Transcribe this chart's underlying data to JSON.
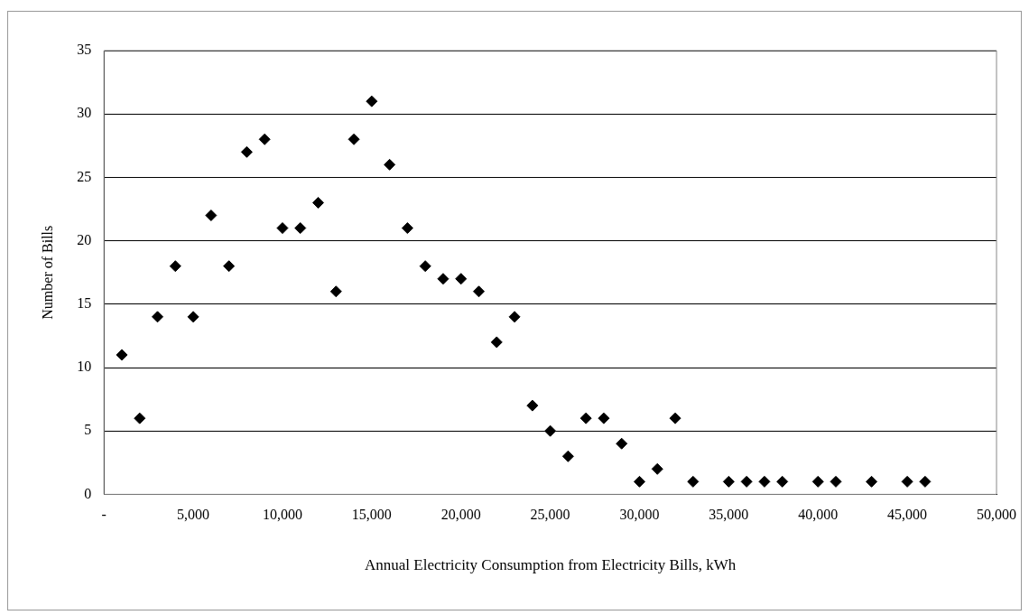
{
  "chart_data": {
    "type": "scatter",
    "xlabel": "Annual Electricity Consumption from Electricity Bills, kWh",
    "ylabel": "Number of Bills",
    "x": [
      1000,
      2000,
      3000,
      4000,
      5000,
      6000,
      7000,
      8000,
      9000,
      10000,
      11000,
      12000,
      13000,
      14000,
      15000,
      16000,
      17000,
      18000,
      19000,
      20000,
      21000,
      22000,
      23000,
      24000,
      25000,
      26000,
      27000,
      28000,
      29000,
      30000,
      31000,
      32000,
      33000,
      35000,
      36000,
      37000,
      38000,
      40000,
      41000,
      43000,
      45000,
      46000
    ],
    "series": [
      {
        "color": "#000000",
        "values": [
          11,
          6,
          14,
          18,
          14,
          22,
          18,
          27,
          28,
          21,
          21,
          23,
          16,
          28,
          31,
          26,
          21,
          18,
          17,
          17,
          16,
          12,
          14,
          7,
          5,
          3,
          6,
          6,
          4,
          1,
          2,
          6,
          1,
          1,
          1,
          1,
          1,
          1,
          1,
          1,
          1,
          1
        ]
      }
    ],
    "xlim": [
      0,
      50000
    ],
    "xticks": [
      {
        "value": 0,
        "label": "-"
      },
      {
        "value": 5000,
        "label": "5,000"
      },
      {
        "value": 10000,
        "label": "10,000"
      },
      {
        "value": 15000,
        "label": "15,000"
      },
      {
        "value": 20000,
        "label": "20,000"
      },
      {
        "value": 25000,
        "label": "25,000"
      },
      {
        "value": 30000,
        "label": "30,000"
      },
      {
        "value": 35000,
        "label": "35,000"
      },
      {
        "value": 40000,
        "label": "40,000"
      },
      {
        "value": 45000,
        "label": "45,000"
      },
      {
        "value": 50000,
        "label": "50,000"
      }
    ],
    "ylim": [
      0,
      35
    ],
    "yticks": [
      0,
      5,
      10,
      15,
      20,
      25,
      30,
      35
    ],
    "grid": "y",
    "legend": false,
    "marker": "diamond"
  }
}
